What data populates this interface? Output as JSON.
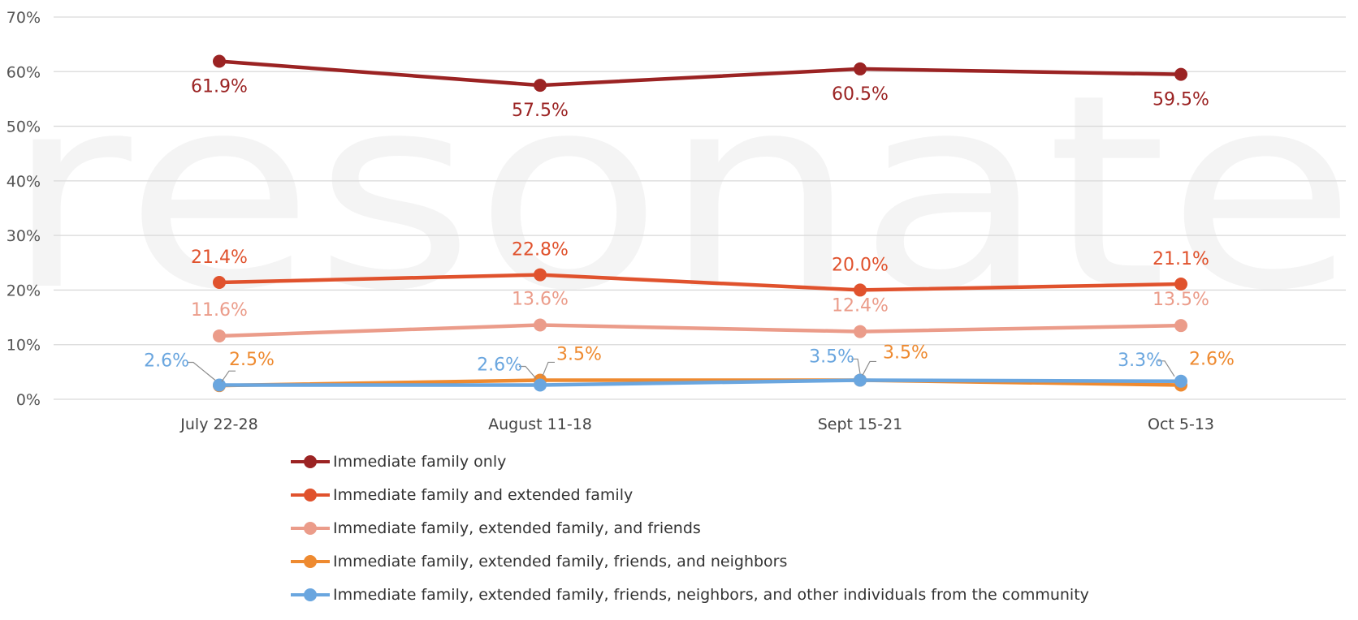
{
  "chart_data": {
    "type": "line",
    "categories": [
      "July 22-28",
      "August 11-18",
      "Sept 15-21",
      "Oct 5-13"
    ],
    "ylim": [
      0,
      70
    ],
    "yticks": [
      "0%",
      "10%",
      "20%",
      "30%",
      "40%",
      "50%",
      "60%",
      "70%"
    ],
    "grid": true,
    "legend_position": "bottom",
    "watermark": "resonate",
    "series": [
      {
        "name": "Immediate family only",
        "color": "#9B2323",
        "values": [
          61.9,
          57.5,
          60.5,
          59.5
        ],
        "labels": [
          "61.9%",
          "57.5%",
          "60.5%",
          "59.5%"
        ]
      },
      {
        "name": "Immediate family and extended family",
        "color": "#E0522D",
        "values": [
          21.4,
          22.8,
          20.0,
          21.1
        ],
        "labels": [
          "21.4%",
          "22.8%",
          "20.0%",
          "21.1%"
        ]
      },
      {
        "name": "Immediate family, extended family, and friends",
        "color": "#EB9C8A",
        "values": [
          11.6,
          13.6,
          12.4,
          13.5
        ],
        "labels": [
          "11.6%",
          "13.6%",
          "12.4%",
          "13.5%"
        ]
      },
      {
        "name": "Immediate family, extended family, friends, and neighbors",
        "color": "#EE8A30",
        "values": [
          2.5,
          3.5,
          3.5,
          2.6
        ],
        "labels": [
          "2.5%",
          "3.5%",
          "3.5%",
          "2.6%"
        ]
      },
      {
        "name": "Immediate family, extended family, friends, neighbors, and other individuals from the community",
        "color": "#6AA6DF",
        "values": [
          2.6,
          2.6,
          3.5,
          3.3
        ],
        "labels": [
          "2.6%",
          "2.6%",
          "3.5%",
          "3.3%"
        ]
      }
    ]
  }
}
